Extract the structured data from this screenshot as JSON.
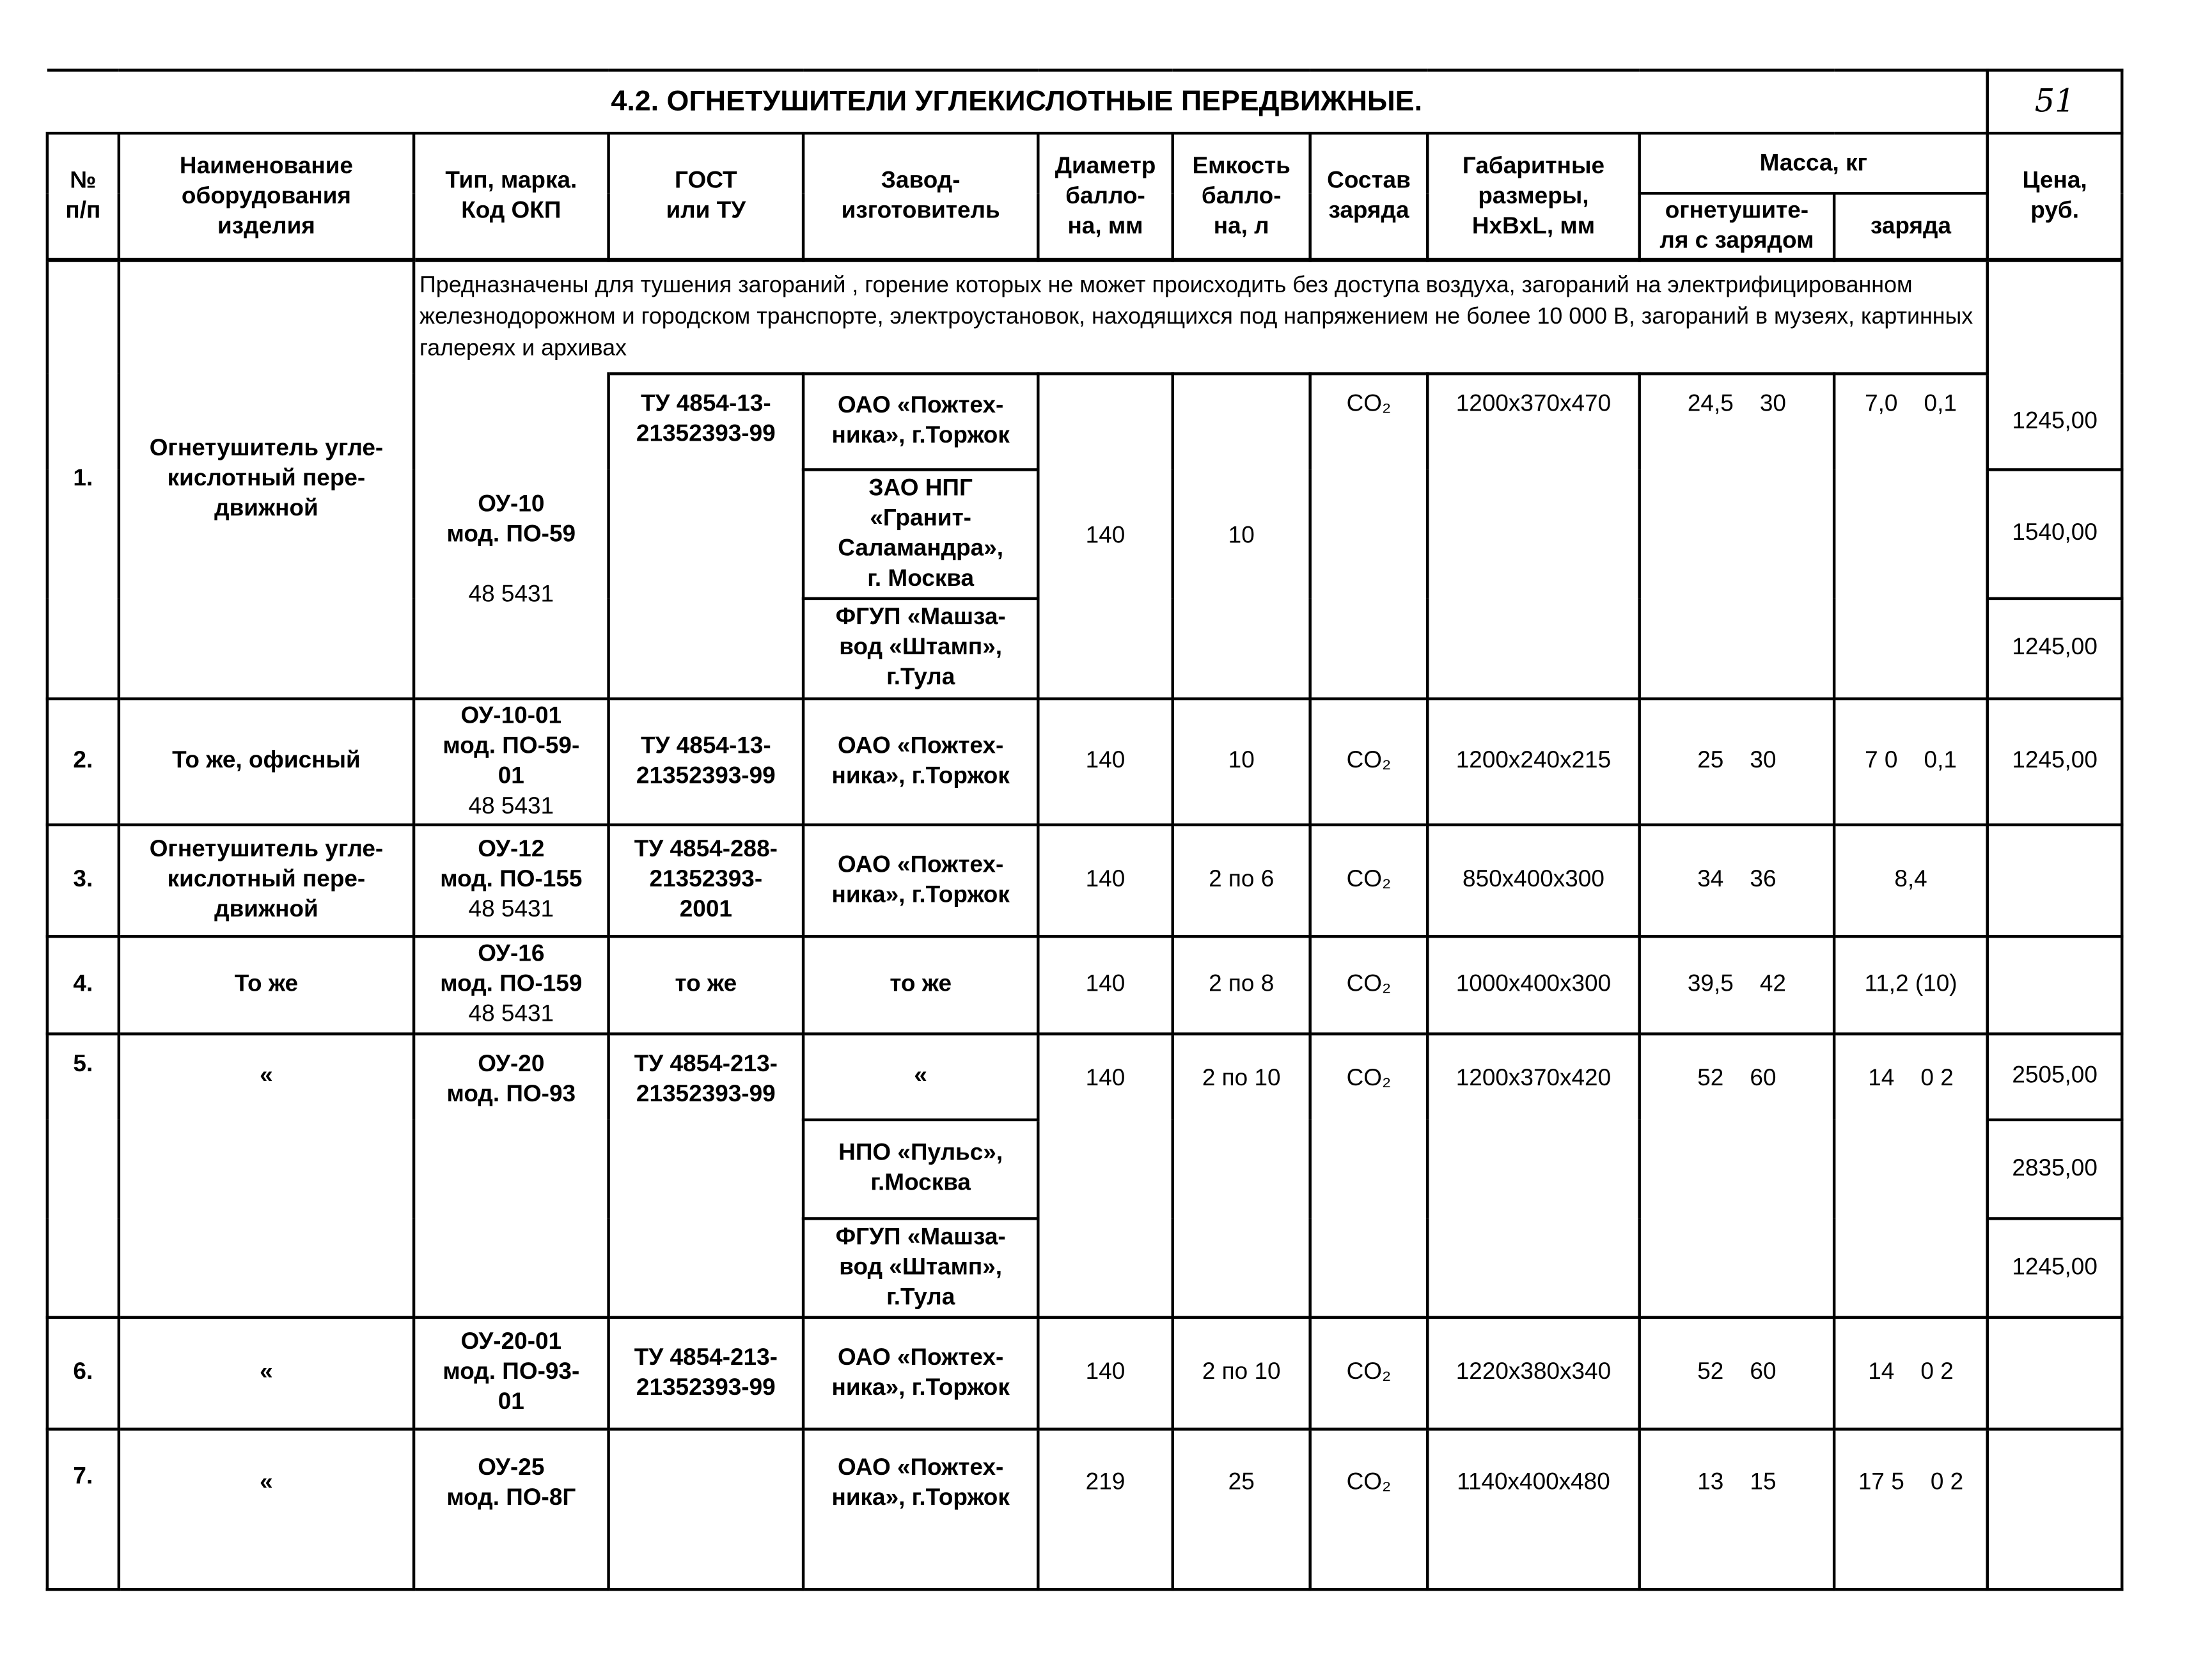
{
  "title": "4.2. ОГНЕТУШИТЕЛИ УГЛЕКИСЛОТНЫЕ ПЕРЕДВИЖНЫЕ.",
  "page_number": "51",
  "headers": {
    "num": "№\nп/п",
    "name": "Наименование\nоборудования\nизделия",
    "type": "Тип, марка.\nКод ОКП",
    "gost": "ГОСТ\nили ТУ",
    "maker": "Завод-\nизготовитель",
    "diameter": "Диаметр\nбалло-\nна, мм",
    "capacity": "Емкость\nбалло-\nна, л",
    "charge": "Состав\nзаряда",
    "dims": "Габаритные\nразмеры,\nHxBxL, мм",
    "mass": "Масса, кг",
    "mass_ext": "огнетушите-\nля с зарядом",
    "mass_charge": "заряда",
    "price": "Цена,\nруб."
  },
  "description": "Предназначены для  тушения загораний , горение которых не может происходить без доступа воздуха, загораний на электрифицированном железнодорожном и городском транспорте, электроустановок, находящихся под напряжением не более 10 000 В, загораний в музеях, картинных галереях и архивах",
  "rows": [
    {
      "num": "1.",
      "name": "Огнетушитель угле-\nкислотный пере-\nдвижной",
      "type": "ОУ-10\nмод. ПО-59",
      "okp": "48 5431",
      "gost": "ТУ 4854-13-\n21352393-99",
      "makers": [
        "ОАО «Пожтех-\nника», г.Торжок",
        "ЗАО НПГ\n«Гранит-\nСаламандра»,\nг. Москва",
        "ФГУП «Машза-\nвод «Штамп»,\nг.Тула"
      ],
      "diameter": "140",
      "capacity": "10",
      "charge": "CO₂",
      "dims": "1200x370x470",
      "mass_ext": "24,5    30",
      "mass_charge": "7,0    0,1",
      "prices": [
        "1245,00",
        "1540,00",
        "1245,00"
      ]
    },
    {
      "num": "2.",
      "name": "То же, офисный",
      "type": "ОУ-10-01\nмод. ПО-59-\n01",
      "okp": "48 5431",
      "gost": "ТУ 4854-13-\n21352393-99",
      "maker": "ОАО «Пожтех-\nника», г.Торжок",
      "diameter": "140",
      "capacity": "10",
      "charge": "CO₂",
      "dims": "1200x240x215",
      "mass_ext": "25    30",
      "mass_charge": "7 0    0,1",
      "price": "1245,00"
    },
    {
      "num": "3.",
      "name": "Огнетушитель угле-\nкислотный пере-\nдвижной",
      "type": "ОУ-12\nмод. ПО-155",
      "okp": "48 5431",
      "gost": "ТУ 4854-288-\n21352393-\n2001",
      "maker": "ОАО «Пожтех-\nника», г.Торжок",
      "diameter": "140",
      "capacity": "2 по 6",
      "charge": "CO₂",
      "dims": "850x400x300",
      "mass_ext": "34    36",
      "mass_charge": "8,4",
      "price": ""
    },
    {
      "num": "4.",
      "name": "То же",
      "type": "ОУ-16\nмод. ПО-159",
      "okp": "48 5431",
      "gost": "то же",
      "maker": "то же",
      "diameter": "140",
      "capacity": "2 по 8",
      "charge": "CO₂",
      "dims": "1000x400x300",
      "mass_ext": "39,5    42",
      "mass_charge": "11,2 (10)",
      "price": ""
    },
    {
      "num": "5.",
      "name": "«",
      "type": "ОУ-20\nмод. ПО-93",
      "gost": "ТУ 4854-213-\n21352393-99",
      "makers": [
        "«",
        "НПО «Пульс»,\nг.Москва",
        "ФГУП «Машза-\nвод «Штамп»,\nг.Тула"
      ],
      "diameter": "140",
      "capacity": "2 по 10",
      "charge": "CO₂",
      "dims": "1200x370x420",
      "mass_ext": "52    60",
      "mass_charge": "14    0 2",
      "prices": [
        "2505,00",
        "2835,00",
        "1245,00"
      ]
    },
    {
      "num": "6.",
      "name": "«",
      "type": "ОУ-20-01\nмод. ПО-93-\n01",
      "gost": "ТУ 4854-213-\n21352393-99",
      "maker": "ОАО «Пожтех-\nника», г.Торжок",
      "diameter": "140",
      "capacity": "2 по 10",
      "charge": "CO₂",
      "dims": "1220x380x340",
      "mass_ext": "52    60",
      "mass_charge": "14    0 2",
      "price": ""
    },
    {
      "num": "7.",
      "name": "«",
      "type": "ОУ-25\nмод. ПО-8Г",
      "gost": "",
      "maker": "ОАО «Пожтех-\nника», г.Торжок",
      "diameter": "219",
      "capacity": "25",
      "charge": "CO₂",
      "dims": "1140x400x480",
      "mass_ext": "13    15",
      "mass_charge": "17 5    0 2",
      "price": ""
    }
  ]
}
